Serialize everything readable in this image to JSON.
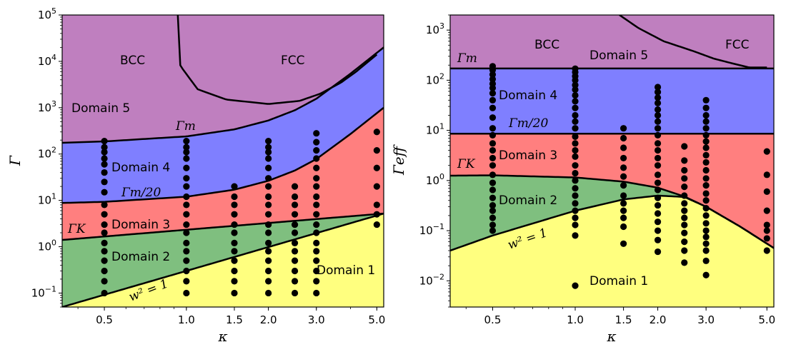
{
  "colors": {
    "domain5": "#bf7fbf",
    "domain4": "#7f7fff",
    "domain3": "#ff7f7f",
    "domain2": "#7fbf7f",
    "domain1": "#ffff7f",
    "line": "#000000",
    "point": "#000000"
  },
  "chart_data": [
    {
      "type": "scatter",
      "title": "",
      "xlabel": "κ",
      "ylabel": "Γ",
      "xscale": "log",
      "yscale": "log",
      "xlim": [
        0.35,
        5.3
      ],
      "ylim": [
        0.05,
        100000
      ],
      "xticks": [
        {
          "v": 0.5,
          "label": "0.5"
        },
        {
          "v": 1.0,
          "label": "1.0"
        },
        {
          "v": 1.5,
          "label": "1.5"
        },
        {
          "v": 2.0,
          "label": "2.0"
        },
        {
          "v": 3.0,
          "label": "3.0"
        },
        {
          "v": 5.0,
          "label": "5.0"
        }
      ],
      "yticks": [
        {
          "v": 0.1,
          "base": "10",
          "exp": "−1"
        },
        {
          "v": 1,
          "base": "10",
          "exp": "0"
        },
        {
          "v": 10,
          "base": "10",
          "exp": "1"
        },
        {
          "v": 100,
          "base": "10",
          "exp": "2"
        },
        {
          "v": 1000,
          "base": "10",
          "exp": "3"
        },
        {
          "v": 10000,
          "base": "10",
          "exp": "4"
        },
        {
          "v": 100000,
          "base": "10",
          "exp": "5"
        }
      ],
      "boundaries": {
        "gamma_m": {
          "x": [
            0.35,
            0.5,
            1.0,
            1.5,
            2.0,
            2.5,
            3.0,
            4.0,
            5.3
          ],
          "y": [
            175,
            187,
            240,
            340,
            530,
            880,
            1560,
            5400,
            20000
          ]
        },
        "gamma_m20": {
          "x": [
            0.35,
            0.5,
            1.0,
            1.5,
            2.0,
            2.5,
            3.0,
            4.0,
            5.3
          ],
          "y": [
            8.8,
            9.3,
            12,
            17,
            26.5,
            44,
            78,
            270,
            1000
          ]
        },
        "gamma_k": {
          "x": [
            0.35,
            5.3
          ],
          "y": [
            1.4,
            5.2
          ]
        },
        "w2": {
          "x": [
            0.35,
            5.3
          ],
          "y": [
            0.05,
            5.2
          ]
        },
        "bcc_fcc": {
          "x": [
            0.93,
            0.95,
            1.1,
            1.4,
            2.0,
            2.6,
            3.1,
            3.7,
            4.2,
            5.0
          ],
          "y": [
            100000,
            8000,
            2500,
            1500,
            1200,
            1400,
            2000,
            3500,
            6000,
            14000
          ]
        }
      },
      "regions": {
        "domain5": "Domain 5",
        "domain4": "Domain 4",
        "domain3": "Domain 3",
        "domain2": "Domain 2",
        "domain1": "Domain 1",
        "bcc": "BCC",
        "fcc": "FCC"
      },
      "line_labels": {
        "gamma_m": "Γm",
        "gamma_m20": "Γm/20",
        "gamma_k": "ΓK",
        "w2": "w² = 1"
      },
      "series": [
        {
          "name": "κ=0.5",
          "x": 0.5,
          "y": [
            0.1,
            0.18,
            0.3,
            0.5,
            0.8,
            1.2,
            2,
            3,
            5,
            8,
            15,
            25,
            40,
            60,
            80,
            110,
            140,
            190
          ]
        },
        {
          "name": "κ=1.0",
          "x": 1.0,
          "y": [
            0.1,
            0.18,
            0.3,
            0.5,
            0.8,
            1.2,
            2,
            3,
            5,
            8,
            12,
            20,
            30,
            50,
            80,
            110,
            140,
            190
          ]
        },
        {
          "name": "κ=1.5",
          "x": 1.5,
          "y": [
            0.1,
            0.18,
            0.3,
            0.5,
            0.8,
            1.2,
            2,
            3,
            5,
            8,
            12,
            20
          ]
        },
        {
          "name": "κ=2.0",
          "x": 2.0,
          "y": [
            0.1,
            0.18,
            0.3,
            0.5,
            0.8,
            1.2,
            2,
            3,
            5,
            8,
            12,
            20,
            30,
            50,
            80,
            110,
            140,
            190
          ]
        },
        {
          "name": "κ=2.5",
          "x": 2.5,
          "y": [
            0.1,
            0.18,
            0.3,
            0.5,
            0.8,
            1.2,
            2,
            3,
            5,
            8,
            12,
            20
          ]
        },
        {
          "name": "κ=3.0",
          "x": 3.0,
          "y": [
            0.1,
            0.18,
            0.3,
            0.5,
            0.8,
            1.2,
            2,
            3,
            5,
            8,
            12,
            20,
            30,
            50,
            80,
            120,
            180,
            280
          ]
        },
        {
          "name": "κ=5.0",
          "x": 5.0,
          "y": [
            3,
            5,
            8,
            20,
            50,
            120,
            300
          ]
        }
      ]
    },
    {
      "type": "scatter",
      "title": "",
      "xlabel": "κ",
      "ylabel": "Γeff",
      "xscale": "log",
      "yscale": "log",
      "xlim": [
        0.35,
        5.3
      ],
      "ylim": [
        0.003,
        2000
      ],
      "xticks": [
        {
          "v": 0.5,
          "label": "0.5"
        },
        {
          "v": 1.0,
          "label": "1.0"
        },
        {
          "v": 1.5,
          "label": "1.5"
        },
        {
          "v": 2.0,
          "label": "2.0"
        },
        {
          "v": 3.0,
          "label": "3.0"
        },
        {
          "v": 5.0,
          "label": "5.0"
        }
      ],
      "yticks": [
        {
          "v": 0.01,
          "base": "10",
          "exp": "−2"
        },
        {
          "v": 0.1,
          "base": "10",
          "exp": "−1"
        },
        {
          "v": 1,
          "base": "10",
          "exp": "0"
        },
        {
          "v": 10,
          "base": "10",
          "exp": "1"
        },
        {
          "v": 100,
          "base": "10",
          "exp": "2"
        },
        {
          "v": 1000,
          "base": "10",
          "exp": "3"
        }
      ],
      "boundaries": {
        "gamma_m": {
          "x": [
            0.35,
            5.3
          ],
          "y": [
            172,
            172
          ]
        },
        "gamma_m20": {
          "x": [
            0.35,
            5.3
          ],
          "y": [
            8.6,
            8.6
          ]
        },
        "gamma_k": {
          "x": [
            0.35,
            0.5,
            1.0,
            1.5,
            2.0,
            2.5,
            3.0,
            4.0,
            5.3
          ],
          "y": [
            1.25,
            1.27,
            1.15,
            0.95,
            0.72,
            0.48,
            0.3,
            0.12,
            0.045
          ]
        },
        "w2": {
          "x": [
            0.35,
            0.5,
            1.0,
            1.5,
            2.0,
            2.5,
            3.0,
            4.0,
            5.3
          ],
          "y": [
            0.04,
            0.08,
            0.25,
            0.42,
            0.5,
            0.47,
            0.3,
            0.12,
            0.045
          ]
        },
        "bcc_fcc": {
          "x": [
            1.45,
            1.7,
            2.1,
            2.7,
            3.2,
            3.7,
            4.3,
            5.0
          ],
          "y": [
            2000,
            1100,
            600,
            380,
            270,
            220,
            180,
            180
          ]
        }
      },
      "regions": {
        "domain5": "Domain 5",
        "domain4": "Domain 4",
        "domain3": "Domain 3",
        "domain2": "Domain 2",
        "domain1": "Domain 1",
        "bcc": "BCC",
        "fcc": "FCC"
      },
      "line_labels": {
        "gamma_m": "Γm",
        "gamma_m20": "Γm/20",
        "gamma_k": "ΓK",
        "w2": "w² = 1"
      },
      "series": [
        {
          "name": "κ=0.5",
          "x": 0.5,
          "y": [
            0.1,
            0.13,
            0.18,
            0.25,
            0.32,
            0.45,
            0.65,
            0.9,
            1.3,
            2.0,
            2.8,
            4.0,
            5.5,
            8,
            11,
            18,
            28,
            40,
            55,
            70,
            85,
            105,
            130,
            160,
            190
          ]
        },
        {
          "name": "κ=1.0",
          "x": 1.0,
          "y": [
            0.008,
            0.08,
            0.13,
            0.18,
            0.25,
            0.35,
            0.5,
            0.7,
            1.0,
            1.4,
            2.0,
            3,
            4,
            5.5,
            7.5,
            11,
            15,
            20,
            28,
            38,
            50,
            65,
            80,
            100,
            120,
            145,
            170
          ]
        },
        {
          "name": "κ=1.5",
          "x": 1.5,
          "y": [
            0.055,
            0.12,
            0.18,
            0.25,
            0.35,
            0.5,
            0.8,
            1.2,
            1.8,
            2.8,
            4.5,
            7,
            11
          ]
        },
        {
          "name": "κ=2.0",
          "x": 2.0,
          "y": [
            0.038,
            0.065,
            0.1,
            0.15,
            0.22,
            0.32,
            0.45,
            0.65,
            0.9,
            1.3,
            2.0,
            2.8,
            4,
            5.5,
            8,
            11,
            15,
            20,
            26,
            35,
            45,
            58,
            73
          ]
        },
        {
          "name": "κ=2.5",
          "x": 2.5,
          "y": [
            0.023,
            0.04,
            0.06,
            0.09,
            0.13,
            0.18,
            0.25,
            0.35,
            0.5,
            0.75,
            1.1,
            1.6,
            2.5,
            4.8
          ]
        },
        {
          "name": "κ=3.0",
          "x": 3.0,
          "y": [
            0.013,
            0.025,
            0.04,
            0.055,
            0.075,
            0.1,
            0.14,
            0.2,
            0.28,
            0.4,
            0.55,
            0.8,
            1.1,
            1.6,
            2.3,
            3.2,
            4.5,
            6,
            8,
            11,
            15,
            20,
            28,
            40
          ]
        },
        {
          "name": "κ=5.0",
          "x": 5.0,
          "y": [
            0.04,
            0.07,
            0.1,
            0.13,
            0.25,
            0.6,
            1.3,
            3.8
          ]
        }
      ]
    }
  ]
}
